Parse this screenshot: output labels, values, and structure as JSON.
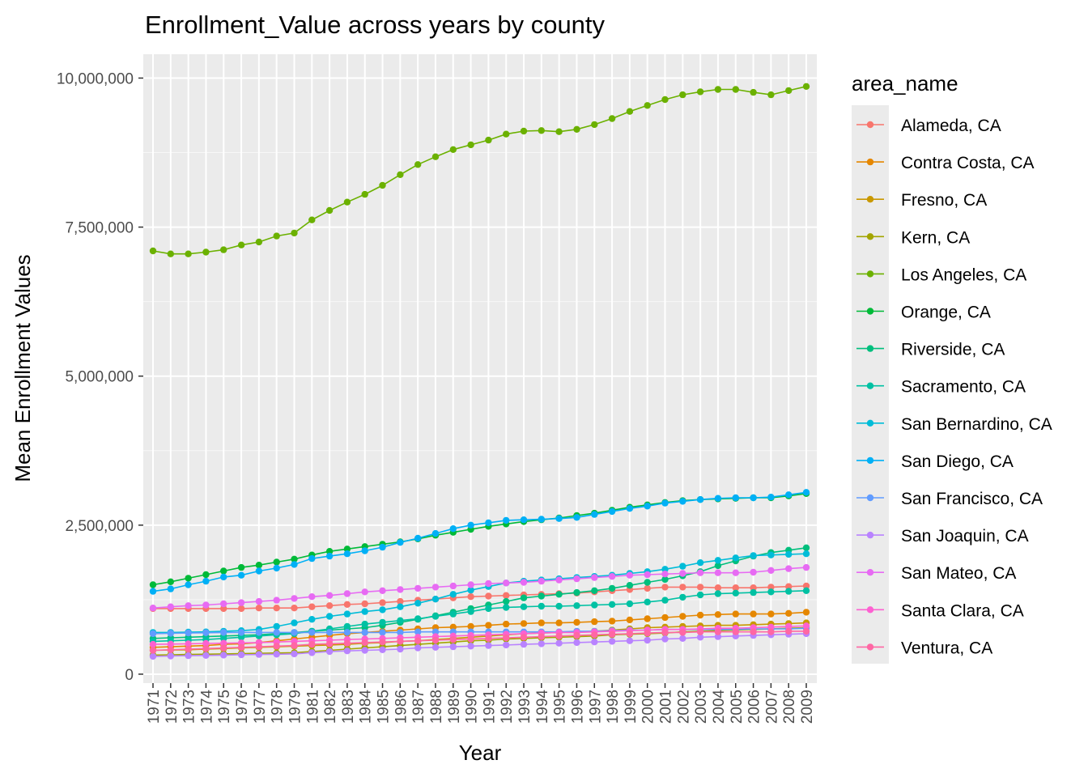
{
  "chart_data": {
    "type": "line",
    "title": "Enrollment_Value across years by county",
    "xlabel": "Year",
    "ylabel": "Mean Enrollment Values",
    "legend_title": "area_name",
    "legend_position": "right",
    "grid": true,
    "ylim": [
      -150000,
      10400000
    ],
    "y_ticks": [
      0,
      2500000,
      5000000,
      7500000,
      10000000
    ],
    "y_tick_labels": [
      "0",
      "2,500,000",
      "5,000,000",
      "7,500,000",
      "10,000,000"
    ],
    "x": [
      "1971",
      "1972",
      "1973",
      "1974",
      "1975",
      "1976",
      "1977",
      "1978",
      "1979",
      "1981",
      "1982",
      "1983",
      "1984",
      "1985",
      "1986",
      "1987",
      "1988",
      "1989",
      "1990",
      "1991",
      "1992",
      "1993",
      "1994",
      "1995",
      "1996",
      "1997",
      "1998",
      "1999",
      "2000",
      "2001",
      "2002",
      "2003",
      "2004",
      "2005",
      "2006",
      "2007",
      "2008",
      "2009"
    ],
    "series": [
      {
        "name": "Alameda, CA",
        "color": "#F8766D",
        "values": [
          1100000,
          1100000,
          1100000,
          1100000,
          1100000,
          1100000,
          1110000,
          1110000,
          1110000,
          1130000,
          1150000,
          1170000,
          1180000,
          1200000,
          1220000,
          1240000,
          1260000,
          1280000,
          1300000,
          1310000,
          1320000,
          1330000,
          1340000,
          1350000,
          1360000,
          1380000,
          1400000,
          1420000,
          1440000,
          1460000,
          1460000,
          1460000,
          1450000,
          1450000,
          1450000,
          1460000,
          1470000,
          1480000
        ]
      },
      {
        "name": "Contra Costa, CA",
        "color": "#E58700",
        "values": [
          450000,
          460000,
          470000,
          480000,
          500000,
          510000,
          530000,
          560000,
          590000,
          620000,
          650000,
          680000,
          700000,
          720000,
          740000,
          760000,
          780000,
          790000,
          800000,
          820000,
          840000,
          850000,
          860000,
          860000,
          870000,
          880000,
          890000,
          910000,
          930000,
          950000,
          970000,
          990000,
          1000000,
          1010000,
          1010000,
          1010000,
          1020000,
          1040000
        ]
      },
      {
        "name": "Fresno, CA",
        "color": "#C99800",
        "values": [
          400000,
          405000,
          410000,
          420000,
          430000,
          440000,
          450000,
          460000,
          470000,
          480000,
          490000,
          500000,
          520000,
          530000,
          550000,
          560000,
          580000,
          600000,
          620000,
          640000,
          660000,
          680000,
          690000,
          700000,
          710000,
          720000,
          740000,
          760000,
          780000,
          790000,
          800000,
          810000,
          820000,
          820000,
          830000,
          840000,
          850000,
          860000
        ]
      },
      {
        "name": "Kern, CA",
        "color": "#A3A500",
        "values": [
          320000,
          325000,
          330000,
          335000,
          340000,
          345000,
          350000,
          355000,
          360000,
          380000,
          400000,
          420000,
          440000,
          460000,
          480000,
          500000,
          520000,
          540000,
          560000,
          570000,
          590000,
          600000,
          610000,
          620000,
          630000,
          640000,
          660000,
          670000,
          680000,
          690000,
          710000,
          720000,
          730000,
          740000,
          750000,
          760000,
          770000,
          780000
        ]
      },
      {
        "name": "Los Angeles, CA",
        "color": "#6BB100",
        "values": [
          7100000,
          7050000,
          7050000,
          7080000,
          7120000,
          7200000,
          7250000,
          7350000,
          7400000,
          7620000,
          7780000,
          7920000,
          8050000,
          8200000,
          8380000,
          8550000,
          8680000,
          8800000,
          8880000,
          8960000,
          9060000,
          9110000,
          9120000,
          9100000,
          9140000,
          9220000,
          9320000,
          9440000,
          9540000,
          9640000,
          9720000,
          9770000,
          9810000,
          9810000,
          9760000,
          9720000,
          9790000,
          9860000
        ]
      },
      {
        "name": "Orange, CA",
        "color": "#00BA38",
        "values": [
          1500000,
          1550000,
          1610000,
          1670000,
          1730000,
          1790000,
          1830000,
          1880000,
          1930000,
          2000000,
          2060000,
          2100000,
          2140000,
          2180000,
          2220000,
          2270000,
          2330000,
          2380000,
          2430000,
          2480000,
          2520000,
          2560000,
          2590000,
          2620000,
          2660000,
          2700000,
          2750000,
          2800000,
          2840000,
          2880000,
          2910000,
          2930000,
          2940000,
          2950000,
          2960000,
          2960000,
          2990000,
          3030000
        ]
      },
      {
        "name": "Riverside, CA",
        "color": "#00BF7D",
        "values": [
          600000,
          610000,
          620000,
          630000,
          640000,
          650000,
          660000,
          680000,
          700000,
          720000,
          740000,
          760000,
          780000,
          820000,
          870000,
          920000,
          980000,
          1040000,
          1100000,
          1160000,
          1220000,
          1280000,
          1310000,
          1340000,
          1370000,
          1400000,
          1440000,
          1490000,
          1540000,
          1590000,
          1650000,
          1720000,
          1820000,
          1900000,
          1980000,
          2040000,
          2080000,
          2120000
        ]
      },
      {
        "name": "Sacramento, CA",
        "color": "#00C1A3",
        "values": [
          550000,
          560000,
          570000,
          580000,
          600000,
          620000,
          640000,
          660000,
          680000,
          720000,
          760000,
          800000,
          840000,
          870000,
          900000,
          930000,
          970000,
          1010000,
          1050000,
          1100000,
          1120000,
          1130000,
          1140000,
          1140000,
          1150000,
          1160000,
          1170000,
          1180000,
          1210000,
          1240000,
          1290000,
          1330000,
          1350000,
          1360000,
          1370000,
          1380000,
          1390000,
          1400000
        ]
      },
      {
        "name": "San Bernardino, CA",
        "color": "#00BCD8",
        "values": [
          700000,
          700000,
          705000,
          710000,
          720000,
          730000,
          750000,
          800000,
          860000,
          920000,
          970000,
          1010000,
          1050000,
          1080000,
          1130000,
          1190000,
          1260000,
          1340000,
          1410000,
          1470000,
          1530000,
          1560000,
          1580000,
          1600000,
          1620000,
          1640000,
          1660000,
          1690000,
          1720000,
          1760000,
          1810000,
          1870000,
          1910000,
          1950000,
          1990000,
          2000000,
          2010000,
          2020000
        ]
      },
      {
        "name": "San Diego, CA",
        "color": "#00B0F6",
        "values": [
          1390000,
          1430000,
          1500000,
          1560000,
          1630000,
          1660000,
          1730000,
          1780000,
          1840000,
          1940000,
          1980000,
          2020000,
          2070000,
          2130000,
          2210000,
          2280000,
          2360000,
          2440000,
          2500000,
          2540000,
          2580000,
          2590000,
          2600000,
          2610000,
          2630000,
          2680000,
          2730000,
          2780000,
          2820000,
          2870000,
          2900000,
          2930000,
          2950000,
          2960000,
          2960000,
          2970000,
          3010000,
          3050000
        ]
      },
      {
        "name": "San Francisco, CA",
        "color": "#619CFF",
        "values": [
          680000,
          685000,
          690000,
          695000,
          700000,
          700000,
          700000,
          700000,
          700000,
          700000,
          700000,
          700000,
          700000,
          700000,
          700000,
          710000,
          710000,
          710000,
          710000,
          710000,
          710000,
          710000,
          710000,
          710000,
          720000,
          720000,
          730000,
          740000,
          740000,
          750000,
          750000,
          750000,
          750000,
          750000,
          760000,
          760000,
          760000,
          770000
        ]
      },
      {
        "name": "San Joaquin, CA",
        "color": "#B983FF",
        "values": [
          300000,
          305000,
          310000,
          315000,
          320000,
          325000,
          330000,
          335000,
          340000,
          360000,
          380000,
          390000,
          400000,
          410000,
          420000,
          440000,
          450000,
          460000,
          470000,
          480000,
          490000,
          500000,
          510000,
          520000,
          530000,
          540000,
          550000,
          560000,
          570000,
          590000,
          600000,
          620000,
          630000,
          640000,
          650000,
          660000,
          670000,
          680000
        ]
      },
      {
        "name": "San Mateo, CA",
        "color": "#E76BF3",
        "values": [
          1110000,
          1130000,
          1150000,
          1160000,
          1180000,
          1200000,
          1220000,
          1240000,
          1270000,
          1300000,
          1320000,
          1350000,
          1380000,
          1400000,
          1420000,
          1440000,
          1460000,
          1480000,
          1500000,
          1520000,
          1530000,
          1540000,
          1560000,
          1580000,
          1600000,
          1620000,
          1640000,
          1660000,
          1670000,
          1680000,
          1690000,
          1700000,
          1700000,
          1700000,
          1710000,
          1740000,
          1770000,
          1790000
        ]
      },
      {
        "name": "Santa Clara, CA",
        "color": "#FD61D1",
        "values": [
          500000,
          505000,
          510000,
          515000,
          520000,
          525000,
          530000,
          540000,
          550000,
          560000,
          570000,
          580000,
          590000,
          600000,
          610000,
          620000,
          630000,
          640000,
          650000,
          660000,
          670000,
          680000,
          690000,
          700000,
          700000,
          710000,
          720000,
          730000,
          740000,
          750000,
          750000,
          760000,
          770000,
          770000,
          780000,
          790000,
          800000,
          810000
        ]
      },
      {
        "name": "Ventura, CA",
        "color": "#FF67A4",
        "values": [
          400000,
          410000,
          420000,
          430000,
          440000,
          450000,
          460000,
          470000,
          480000,
          500000,
          510000,
          520000,
          530000,
          540000,
          550000,
          560000,
          570000,
          580000,
          590000,
          600000,
          610000,
          620000,
          630000,
          640000,
          650000,
          660000,
          670000,
          680000,
          690000,
          700000,
          700000,
          710000,
          710000,
          710000,
          710000,
          710000,
          720000,
          720000
        ]
      }
    ]
  }
}
